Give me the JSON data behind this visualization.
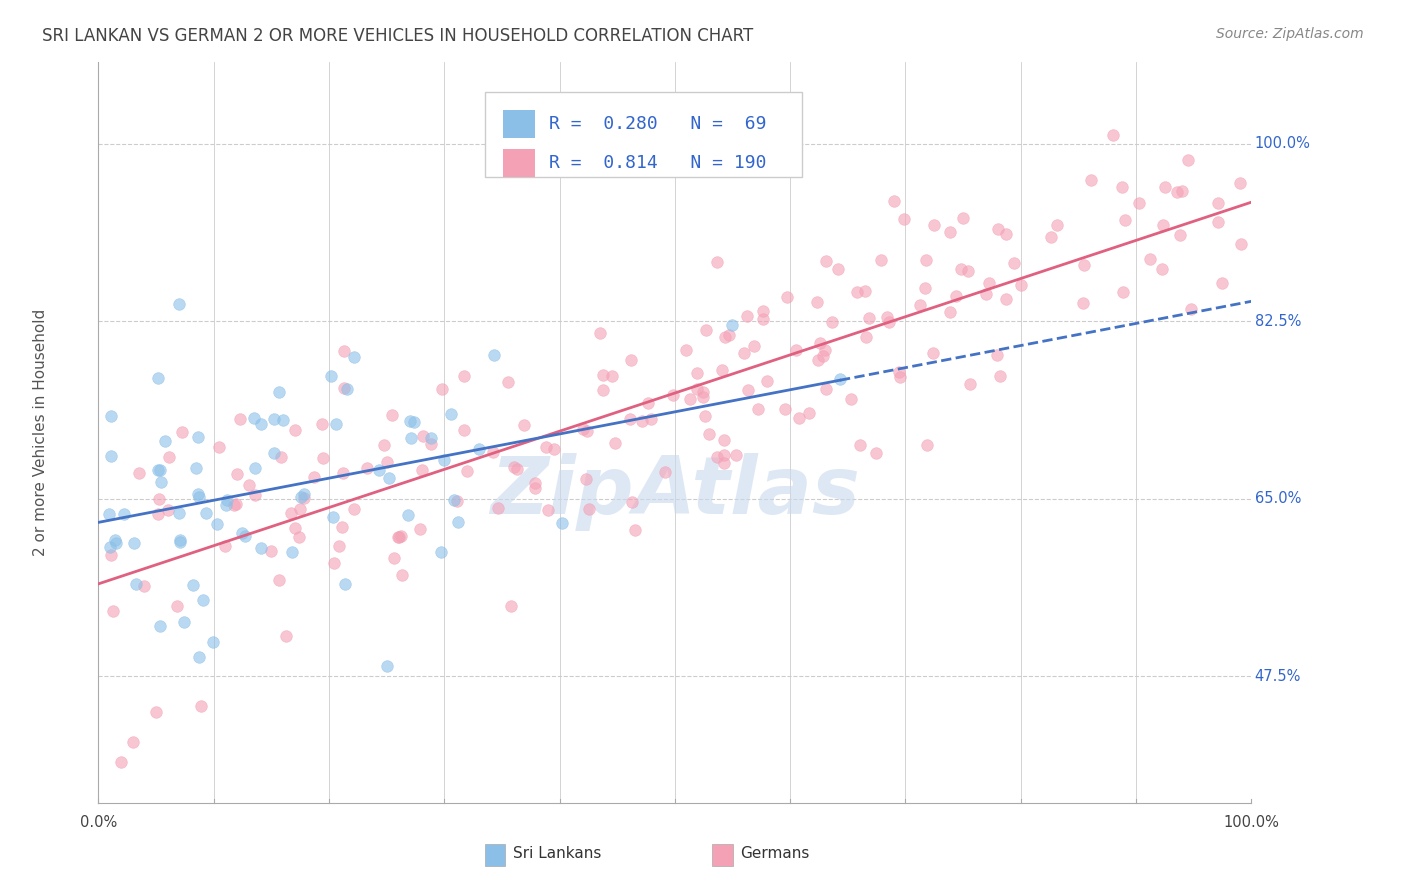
{
  "title": "SRI LANKAN VS GERMAN 2 OR MORE VEHICLES IN HOUSEHOLD CORRELATION CHART",
  "source": "Source: ZipAtlas.com",
  "ylabel": "2 or more Vehicles in Household",
  "sri_lankan_color": "#8BBFE8",
  "german_color": "#F4A0B5",
  "sri_lankan_line_color": "#4472C4",
  "german_line_color": "#E06080",
  "sri_lankan_R": 0.28,
  "sri_lankan_N": 69,
  "german_R": 0.814,
  "german_N": 190,
  "legend_color": "#3366CC",
  "grid_color": "#CCCCCC",
  "background_color": "#FFFFFF",
  "title_color": "#444444",
  "source_color": "#888888",
  "ylabel_color": "#555555",
  "y_tick_color": "#3366CC",
  "x_tick_color": "#444444",
  "xlim": [
    0.0,
    1.0
  ],
  "ylim": [
    0.35,
    1.08
  ],
  "y_tick_positions": [
    0.475,
    0.65,
    0.825,
    1.0
  ],
  "y_tick_labels": [
    "47.5%",
    "65.0%",
    "82.5%",
    "100.0%"
  ],
  "watermark_color": "#C8DAEE",
  "watermark_alpha": 0.6,
  "dot_size": 70,
  "dot_alpha": 0.6,
  "line_width": 2.0
}
